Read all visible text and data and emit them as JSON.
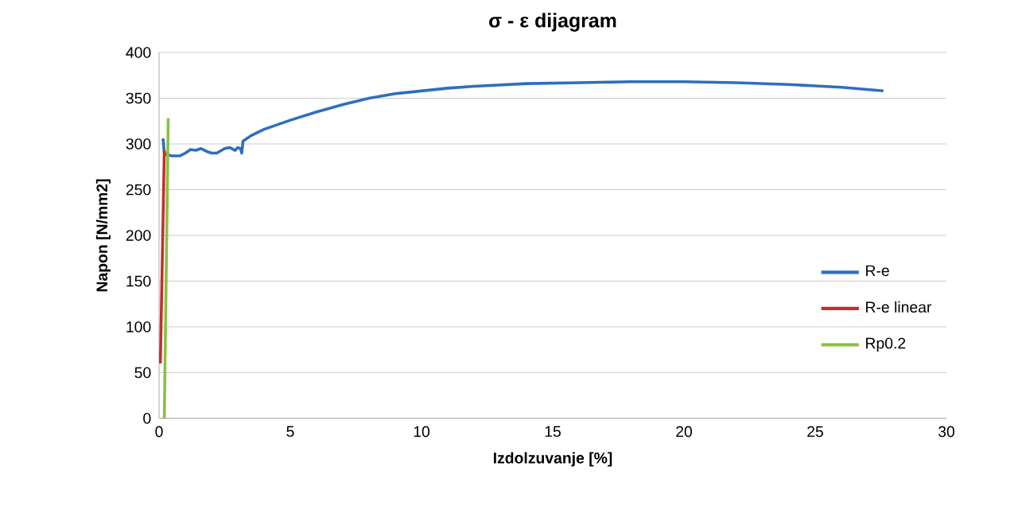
{
  "chart_data": {
    "type": "line",
    "title": "σ - ε dijagram",
    "xlabel": "Izdolzuvanje [%]",
    "ylabel": "Napon [N/mm2]",
    "xlim": [
      0,
      30
    ],
    "ylim": [
      0,
      400
    ],
    "xticks": [
      0,
      5,
      10,
      15,
      20,
      25,
      30
    ],
    "yticks": [
      0,
      50,
      100,
      150,
      200,
      250,
      300,
      350,
      400
    ],
    "grid": "y",
    "legend": "right",
    "marker": "none",
    "line_style": "solid",
    "series": [
      {
        "name": "R-e",
        "color": "#2e6ebf",
        "x": [
          0.15,
          0.2,
          0.3,
          0.5,
          0.8,
          1.0,
          1.2,
          1.4,
          1.6,
          1.8,
          2.0,
          2.2,
          2.5,
          2.7,
          2.9,
          3.0,
          3.1,
          3.15,
          3.2,
          3.5,
          4,
          5,
          6,
          7,
          8,
          9,
          10,
          11,
          12,
          14,
          16,
          18,
          20,
          22,
          24,
          26,
          27.6
        ],
        "values": [
          306,
          290,
          288,
          287,
          287,
          290,
          294,
          293,
          295,
          292,
          290,
          290,
          295,
          296,
          293,
          296,
          295,
          290,
          303,
          309,
          316,
          326,
          335,
          343,
          350,
          355,
          358,
          361,
          363,
          366,
          367,
          368,
          368,
          367,
          365,
          362,
          358
        ]
      },
      {
        "name": "R-e linear",
        "color": "#c0312c",
        "x": [
          0.05,
          0.2
        ],
        "values": [
          60,
          293
        ]
      },
      {
        "name": "Rp0.2",
        "color": "#8cbf3f",
        "x": [
          0.2,
          0.35
        ],
        "values": [
          0,
          328
        ]
      }
    ]
  }
}
